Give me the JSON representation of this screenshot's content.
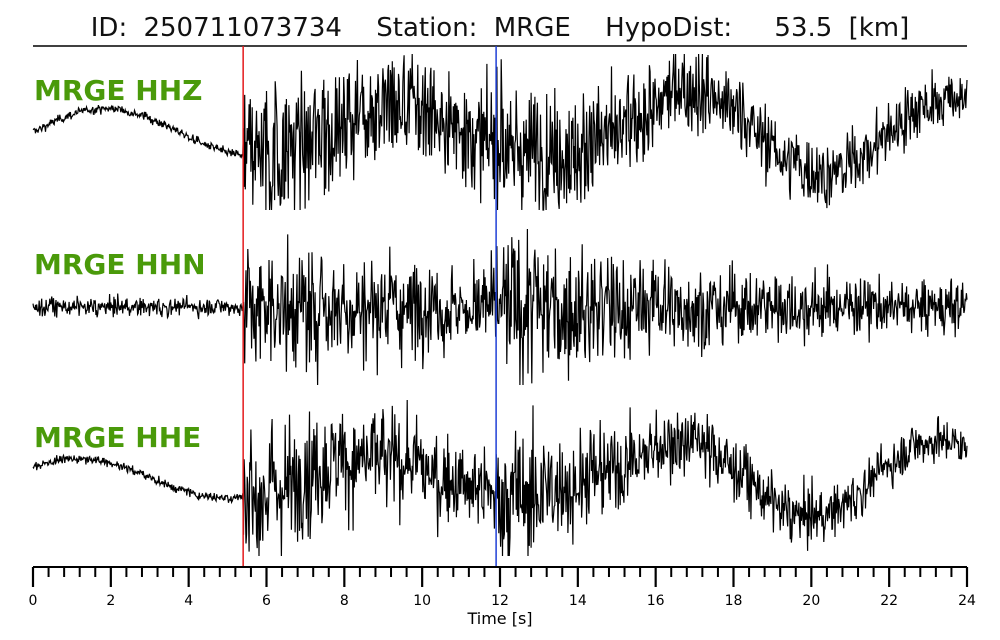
{
  "title": {
    "id_label": "ID:",
    "id_value": "250711073734",
    "station_label": "Station:",
    "station_value": "MRGE",
    "hypodist_label": "HypoDist:",
    "hypodist_value": "53.5",
    "hypodist_unit": "[km]"
  },
  "chart_data": {
    "type": "line",
    "xlabel": "Time [s]",
    "xlim": [
      0,
      24
    ],
    "x_ticks": [
      0,
      2,
      4,
      6,
      8,
      10,
      12,
      14,
      16,
      18,
      20,
      22,
      24
    ],
    "minor_tick_step": 0.4,
    "grid": false,
    "picks": [
      {
        "phase": "P",
        "time": 5.4,
        "color": "#e41a1c"
      },
      {
        "phase": "S",
        "time": 11.9,
        "color": "#1f3fd6"
      }
    ],
    "label_color": "#4a9a0a",
    "trace_color": "#000000",
    "series": [
      {
        "name": "MRGE HHZ",
        "noise_level": 0.06,
        "long_period_amp": 0.3,
        "peak_amp": 1.0
      },
      {
        "name": "MRGE HHN",
        "noise_level": 0.12,
        "long_period_amp": 0.0,
        "peak_amp": 1.0
      },
      {
        "name": "MRGE HHE",
        "noise_level": 0.06,
        "long_period_amp": 0.25,
        "peak_amp": 1.0
      }
    ]
  }
}
